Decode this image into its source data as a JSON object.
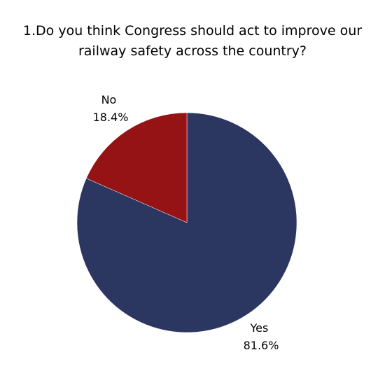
{
  "chart_data": {
    "type": "pie",
    "title_lines": [
      "1.Do you think Congress should act to improve our",
      "railway safety across the country?"
    ],
    "slices": [
      {
        "label": "Yes",
        "value": 81.6,
        "value_label": "81.6%",
        "color": "#2b3661"
      },
      {
        "label": "No",
        "value": 18.4,
        "value_label": "18.4%",
        "color": "#951215"
      }
    ],
    "start_angle": "12 o'clock",
    "direction": "clockwise",
    "legend": "none"
  }
}
